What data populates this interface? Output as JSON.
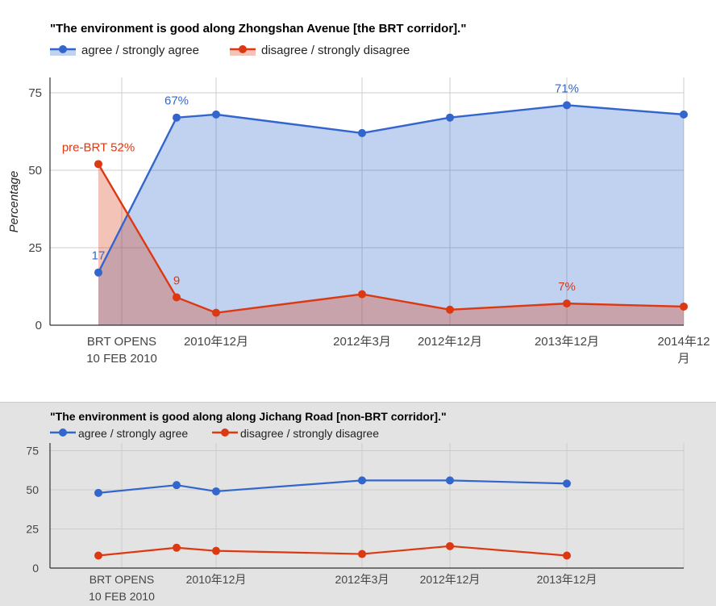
{
  "colors": {
    "agree": "#3366cc",
    "disagree": "#dc3912"
  },
  "chart_data": [
    {
      "type": "area",
      "title": "\"The environment is good along Zhongshan Avenue [the BRT corridor].\"",
      "ylabel": "Percentage",
      "ylim": [
        0,
        80
      ],
      "yticks": [
        "0",
        "25",
        "50",
        "75"
      ],
      "grid": true,
      "legend_placement": "top-left",
      "x_tick_labels": [
        [
          "BRT OPENS",
          "10 FEB 2010"
        ],
        [
          "2010年12月"
        ],
        [
          "2012年3月"
        ],
        [
          "2012年12月"
        ],
        [
          "2013年12月"
        ],
        [
          "2014年12",
          "月"
        ]
      ],
      "series": [
        {
          "name": "agree / strongly agree",
          "values": [
            17,
            67,
            68,
            62,
            67,
            71,
            68
          ],
          "annotations": [
            {
              "index": 0,
              "text": "17"
            },
            {
              "index": 1,
              "text": "67%"
            },
            {
              "index": 5,
              "text": "71%"
            }
          ]
        },
        {
          "name": "disagree / strongly disagree",
          "values": [
            52,
            9,
            4,
            10,
            5,
            7,
            6
          ],
          "annotations": [
            {
              "index": 0,
              "text": "pre-BRT 52%"
            },
            {
              "index": 1,
              "text": "9"
            },
            {
              "index": 5,
              "text": "7%"
            }
          ]
        }
      ]
    },
    {
      "type": "line",
      "title": "\"The environment is good along along Jichang Road [non-BRT corridor].\"",
      "ylim": [
        0,
        80
      ],
      "yticks": [
        "0",
        "25",
        "50",
        "75"
      ],
      "grid": true,
      "legend_placement": "top-left",
      "x_tick_labels": [
        [
          "BRT OPENS",
          "10 FEB 2010"
        ],
        [
          "2010年12月"
        ],
        [
          "2012年3月"
        ],
        [
          "2012年12月"
        ],
        [
          "2013年12月"
        ]
      ],
      "series": [
        {
          "name": "agree / strongly agree",
          "values": [
            48,
            53,
            49,
            56,
            56,
            54
          ]
        },
        {
          "name": "disagree / strongly disagree",
          "values": [
            8,
            13,
            11,
            9,
            14,
            8
          ]
        }
      ]
    }
  ]
}
